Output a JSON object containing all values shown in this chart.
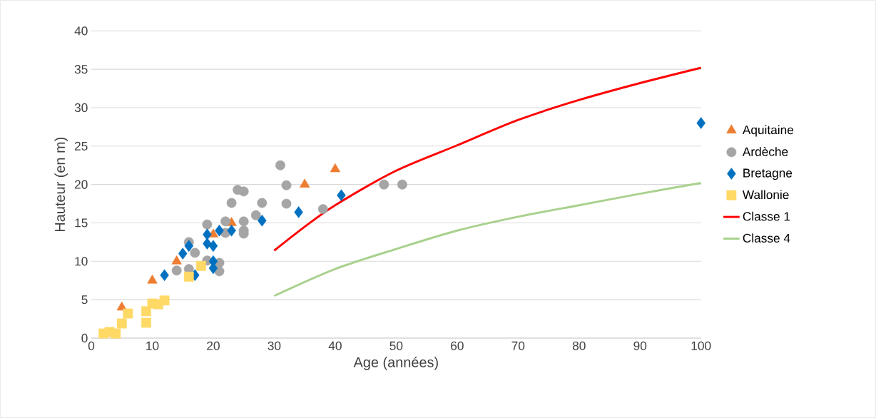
{
  "chart_data": {
    "type": "scatter",
    "xlabel": "Age (années)",
    "ylabel": "Hauteur (en m)",
    "xlim": [
      0,
      100
    ],
    "xticks": [
      0,
      10,
      20,
      30,
      40,
      50,
      60,
      70,
      80,
      90,
      100
    ],
    "ylim": [
      0,
      40
    ],
    "yticks": [
      0,
      5,
      10,
      15,
      20,
      25,
      30,
      35,
      40
    ],
    "grid": "y",
    "legend": "right",
    "series": [
      {
        "name": "Aquitaine",
        "color": "#ed7d31",
        "marker": "triangle",
        "x": [
          5,
          10,
          14,
          20,
          23,
          35,
          40
        ],
        "values": [
          4,
          7.5,
          10,
          13.5,
          15,
          20,
          22
        ]
      },
      {
        "name": "Ardèche",
        "color": "#a5a5a5",
        "marker": "circle",
        "x": [
          14,
          16,
          16,
          17,
          19,
          19,
          21,
          21,
          22,
          22,
          23,
          24,
          25,
          25,
          25,
          25,
          27,
          28,
          31,
          32,
          32,
          38,
          48,
          51
        ],
        "values": [
          8.8,
          12.5,
          9,
          11.1,
          14.8,
          10.1,
          9.8,
          8.7,
          15.2,
          13.7,
          17.6,
          19.3,
          19.1,
          15.2,
          14,
          13.6,
          16,
          17.6,
          22.5,
          19.9,
          17.5,
          16.8,
          20,
          20
        ]
      },
      {
        "name": "Bretagne",
        "color": "#0070c0",
        "marker": "diamond",
        "x": [
          12,
          15,
          16,
          17,
          19,
          19,
          20,
          20,
          20,
          21,
          23,
          28,
          34,
          41,
          100
        ],
        "values": [
          8.2,
          11,
          12,
          8.2,
          13.5,
          12.3,
          12,
          10,
          9.1,
          14,
          14,
          15.3,
          16.4,
          18.6,
          28
        ]
      },
      {
        "name": "Wallonie",
        "color": "#ffd966",
        "marker": "square",
        "x": [
          2,
          3,
          4,
          5,
          6,
          9,
          9,
          10,
          11,
          12,
          16,
          18
        ],
        "values": [
          0.6,
          0.8,
          0.6,
          1.9,
          3.2,
          2,
          3.5,
          4.5,
          4.4,
          4.9,
          8,
          9.4
        ]
      },
      {
        "name": "Classe 1",
        "type": "line",
        "color": "#ff0000",
        "marker": "none",
        "x": [
          30,
          35,
          40,
          50,
          60,
          70,
          80,
          90,
          100
        ],
        "values": [
          11.4,
          14.5,
          17.3,
          21.8,
          25.1,
          28.4,
          31,
          33.2,
          35.2
        ]
      },
      {
        "name": "Classe 4",
        "type": "line",
        "color": "#a9d18e",
        "marker": "none",
        "x": [
          30,
          40,
          50,
          60,
          70,
          80,
          90,
          100
        ],
        "values": [
          5.5,
          9,
          11.6,
          14,
          15.8,
          17.3,
          18.8,
          20.2
        ]
      }
    ]
  }
}
